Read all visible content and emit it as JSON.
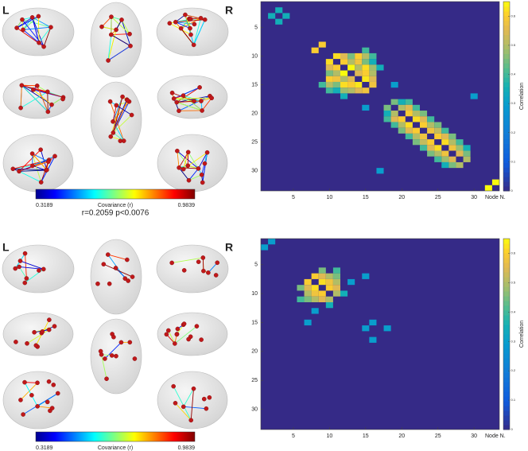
{
  "correlation_text": "r=0.2059 p<0.0076",
  "brain_panels": [
    {
      "left_label": "L",
      "right_label": "R",
      "colorbar": {
        "min": 0.3189,
        "max": 0.9839,
        "label": "Covariance (r)"
      }
    },
    {
      "left_label": "L",
      "right_label": "R",
      "colorbar": {
        "min": 0.3189,
        "max": 0.9839,
        "label": "Covariance (r)"
      }
    }
  ],
  "chart_data": [
    {
      "type": "heatmap",
      "colormap": "parula",
      "xlabel": "Node N.",
      "colorbar_label": "Correlation",
      "xlim": [
        0.5,
        33.5
      ],
      "ylim": [
        0.5,
        33.5
      ],
      "xticks": [
        5,
        10,
        15,
        20,
        25,
        30
      ],
      "yticks": [
        5,
        10,
        15,
        20,
        25,
        30
      ],
      "clim": [
        0,
        0.65
      ],
      "cticks": [
        0,
        0.1,
        0.2,
        0.3,
        0.4,
        0.5,
        0.6
      ],
      "x": [
        2,
        3,
        3,
        4,
        8,
        9,
        10,
        11,
        10,
        12,
        10,
        13,
        10,
        14,
        10,
        15,
        10,
        16,
        11,
        12,
        11,
        13,
        11,
        14,
        11,
        15,
        11,
        16,
        12,
        13,
        12,
        14,
        12,
        15,
        12,
        16,
        13,
        14,
        13,
        15,
        13,
        16,
        14,
        15,
        14,
        16,
        15,
        16,
        9,
        15,
        12,
        17,
        15,
        19,
        17,
        30,
        18,
        19,
        18,
        20,
        18,
        21,
        19,
        20,
        19,
        21,
        19,
        22,
        20,
        21,
        20,
        22,
        20,
        23,
        21,
        22,
        21,
        23,
        21,
        24,
        22,
        23,
        22,
        24,
        22,
        25,
        23,
        24,
        23,
        25,
        23,
        26,
        24,
        25,
        24,
        26,
        24,
        27,
        25,
        26,
        25,
        27,
        25,
        28,
        26,
        27,
        26,
        28,
        26,
        29,
        27,
        28,
        27,
        29,
        28,
        29,
        32,
        33
      ],
      "y": [
        3,
        2,
        4,
        3,
        9,
        8,
        11,
        10,
        12,
        10,
        13,
        10,
        14,
        10,
        15,
        10,
        16,
        10,
        12,
        11,
        13,
        11,
        14,
        11,
        15,
        11,
        16,
        11,
        13,
        12,
        14,
        12,
        15,
        12,
        16,
        12,
        14,
        13,
        15,
        13,
        16,
        13,
        15,
        14,
        16,
        14,
        16,
        15,
        15,
        9,
        17,
        12,
        19,
        15,
        30,
        17,
        19,
        18,
        20,
        18,
        21,
        18,
        20,
        19,
        21,
        19,
        22,
        19,
        21,
        20,
        22,
        20,
        23,
        20,
        22,
        21,
        23,
        21,
        24,
        21,
        23,
        22,
        24,
        22,
        25,
        22,
        24,
        23,
        25,
        23,
        26,
        23,
        25,
        24,
        26,
        24,
        27,
        24,
        26,
        25,
        27,
        25,
        28,
        25,
        27,
        26,
        28,
        26,
        29,
        26,
        28,
        27,
        29,
        27,
        29,
        28,
        33,
        32
      ],
      "values": [
        0.35,
        0.35,
        0.35,
        0.35,
        0.6,
        0.6,
        0.62,
        0.62,
        0.55,
        0.55,
        0.45,
        0.45,
        0.6,
        0.6,
        0.5,
        0.5,
        0.4,
        0.4,
        0.6,
        0.6,
        0.5,
        0.5,
        0.58,
        0.58,
        0.45,
        0.45,
        0.35,
        0.35,
        0.65,
        0.65,
        0.5,
        0.5,
        0.62,
        0.62,
        0.48,
        0.48,
        0.55,
        0.55,
        0.6,
        0.6,
        0.5,
        0.5,
        0.63,
        0.63,
        0.55,
        0.55,
        0.58,
        0.58,
        0.4,
        0.4,
        0.35,
        0.35,
        0.3,
        0.3,
        0.3,
        0.3,
        0.45,
        0.45,
        0.35,
        0.35,
        0.4,
        0.4,
        0.5,
        0.5,
        0.55,
        0.55,
        0.4,
        0.4,
        0.6,
        0.6,
        0.5,
        0.5,
        0.45,
        0.45,
        0.62,
        0.62,
        0.55,
        0.55,
        0.4,
        0.4,
        0.6,
        0.6,
        0.5,
        0.5,
        0.45,
        0.45,
        0.58,
        0.58,
        0.52,
        0.52,
        0.4,
        0.4,
        0.6,
        0.6,
        0.55,
        0.55,
        0.45,
        0.45,
        0.62,
        0.62,
        0.5,
        0.5,
        0.4,
        0.4,
        0.58,
        0.58,
        0.48,
        0.48,
        0.35,
        0.35,
        0.55,
        0.55,
        0.45,
        0.45,
        0.5,
        0.5,
        0.65,
        0.65
      ]
    },
    {
      "type": "heatmap",
      "colormap": "parula",
      "xlabel": "Node N.",
      "colorbar_label": "Correlation",
      "xlim": [
        0.5,
        33.5
      ],
      "ylim": [
        0.5,
        33.5
      ],
      "xticks": [
        5,
        10,
        15,
        20,
        25,
        30
      ],
      "yticks": [
        5,
        10,
        15,
        20,
        25,
        30
      ],
      "clim": [
        0,
        0.65
      ],
      "cticks": [
        0,
        0.1,
        0.2,
        0.3,
        0.4,
        0.5,
        0.6
      ],
      "x": [
        1,
        2,
        7,
        8,
        7,
        9,
        7,
        10,
        7,
        11,
        8,
        9,
        8,
        10,
        8,
        11,
        9,
        10,
        9,
        11,
        10,
        11,
        6,
        9,
        6,
        11,
        8,
        13,
        7,
        15,
        15,
        16,
        16,
        18,
        10,
        12
      ],
      "y": [
        2,
        1,
        8,
        7,
        9,
        7,
        10,
        7,
        11,
        7,
        9,
        8,
        10,
        8,
        11,
        8,
        10,
        9,
        11,
        9,
        11,
        10,
        9,
        6,
        11,
        6,
        13,
        8,
        15,
        7,
        16,
        15,
        18,
        16,
        12,
        10
      ],
      "values": [
        0.3,
        0.3,
        0.6,
        0.6,
        0.55,
        0.55,
        0.5,
        0.5,
        0.45,
        0.45,
        0.62,
        0.62,
        0.58,
        0.58,
        0.5,
        0.5,
        0.6,
        0.6,
        0.55,
        0.55,
        0.5,
        0.5,
        0.45,
        0.45,
        0.4,
        0.4,
        0.3,
        0.3,
        0.3,
        0.3,
        0.3,
        0.3,
        0.3,
        0.3,
        0.35,
        0.35
      ]
    }
  ]
}
